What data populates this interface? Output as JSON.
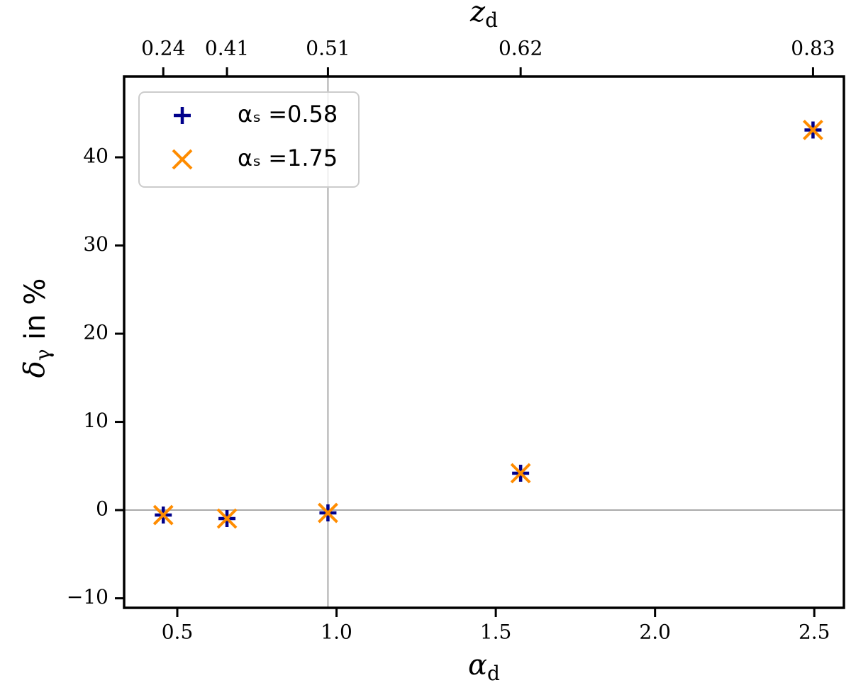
{
  "chart_data": {
    "type": "scatter",
    "xlabel": {
      "symbol": "α",
      "sub": "d"
    },
    "ylabel": {
      "symbol": "δ",
      "sub": "γ",
      "tail": " in %"
    },
    "x2label": {
      "symbol": "z",
      "sub": "d"
    },
    "x": [
      0.456,
      0.656,
      0.973,
      1.578,
      2.496
    ],
    "series": [
      {
        "name": "αₛ =0.58",
        "color": "#00008b",
        "marker": "plus",
        "values": [
          -0.56,
          -0.96,
          -0.32,
          4.18,
          43.1
        ]
      },
      {
        "name": "αₛ =1.75",
        "color": "#ff8c00",
        "marker": "x",
        "values": [
          -0.56,
          -0.96,
          -0.32,
          4.18,
          43.1
        ]
      }
    ],
    "xlim": [
      0.333,
      2.593
    ],
    "ylim": [
      -11.08,
      49.16
    ],
    "xticks": [
      0.5,
      {
        "value": 1.0,
        "label": "1.0"
      },
      1.5,
      {
        "value": 2.0,
        "label": "2.0"
      },
      2.5
    ],
    "yticks": [
      {
        "value": -10,
        "label": "−10"
      },
      0,
      10,
      20,
      30,
      40
    ],
    "x2ticks": [
      {
        "value": 0.456,
        "label": "0.24"
      },
      {
        "value": 0.656,
        "label": "0.41"
      },
      {
        "value": 0.973,
        "label": "0.51"
      },
      {
        "value": 1.578,
        "label": "0.62"
      },
      {
        "value": 2.496,
        "label": "0.83"
      }
    ],
    "reference_lines": {
      "x": 0.973,
      "y": 0
    },
    "legend": "upper left"
  }
}
